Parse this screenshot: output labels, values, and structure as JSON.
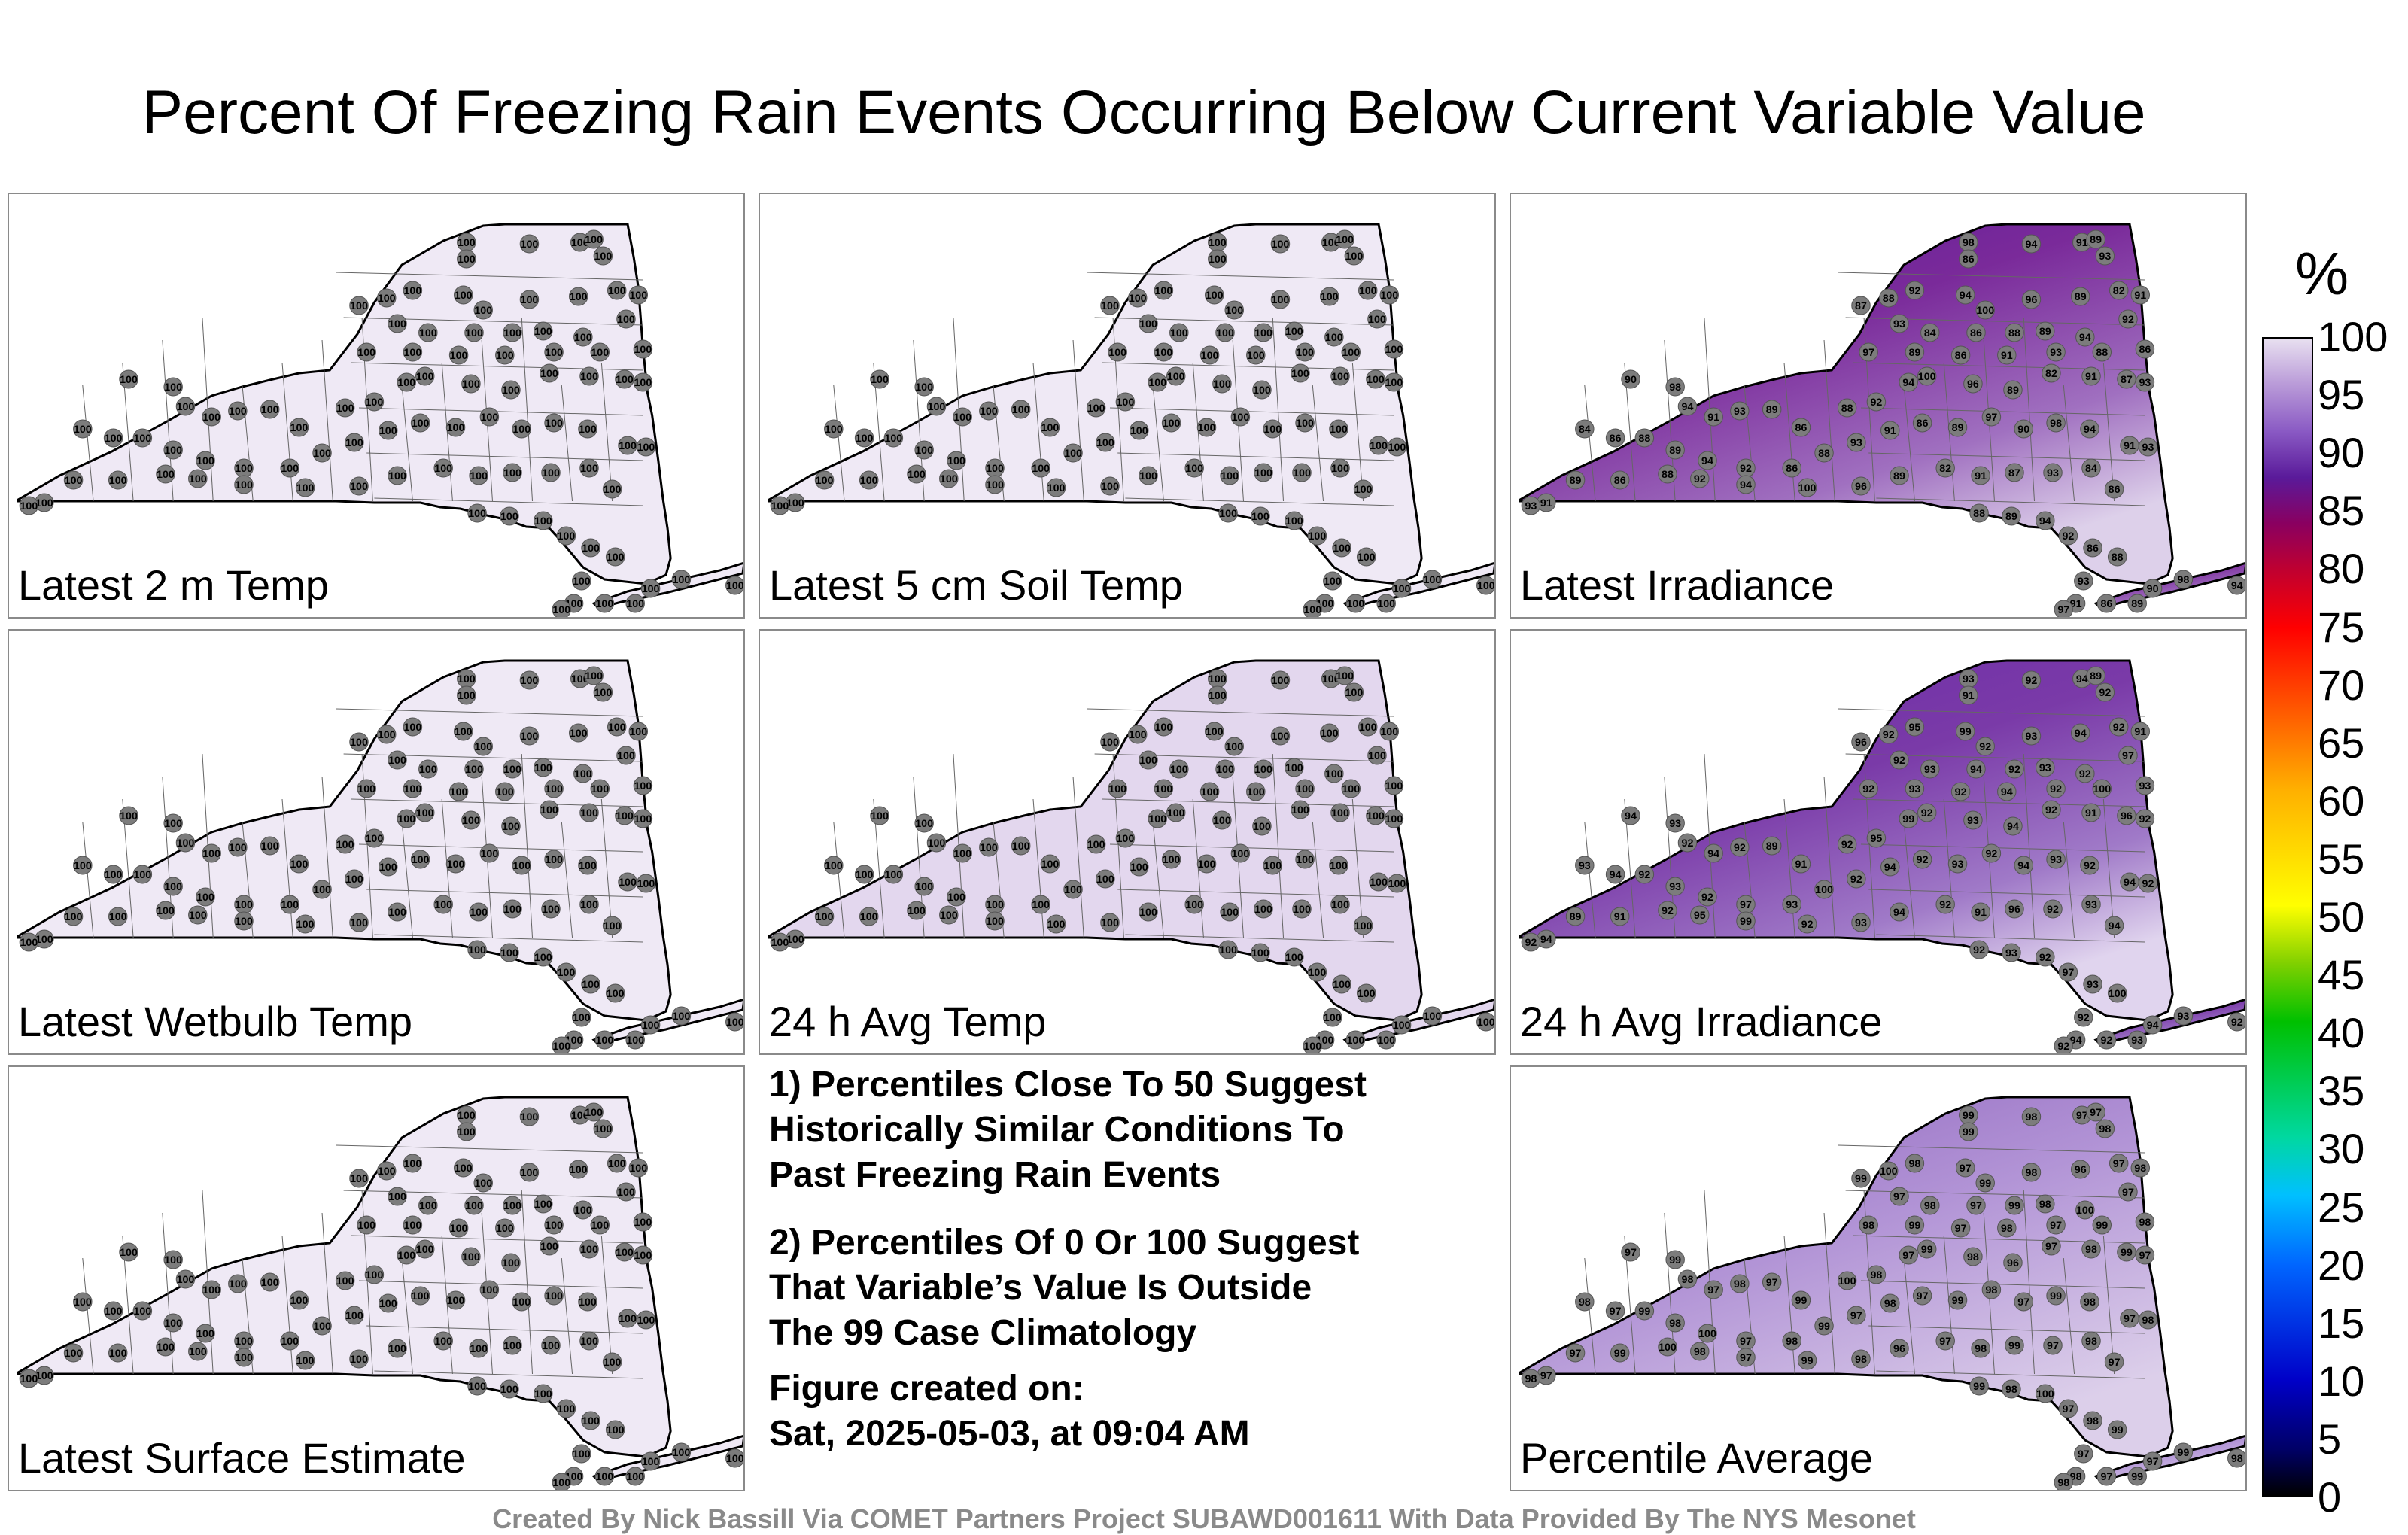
{
  "title": "Percent Of Freezing Rain Events Occurring Below Current Variable Value",
  "panels": [
    {
      "label": "Latest 2 m Temp",
      "value_label": "100",
      "fill": "#efe9f5",
      "style": "uniform"
    },
    {
      "label": "Latest 5 cm Soil Temp",
      "value_label": "100",
      "fill": "#efe9f5",
      "style": "uniform"
    },
    {
      "label": "Latest Irradiance",
      "value_label": "89",
      "fill": "#6a2a9a",
      "style": "irradiance"
    },
    {
      "label": "Latest Wetbulb Temp",
      "value_label": "100",
      "fill": "#efe9f5",
      "style": "uniform"
    },
    {
      "label": "24 h Avg Temp",
      "value_label": "100",
      "fill": "#e3d7ee",
      "style": "uniform"
    },
    {
      "label": "24 h Avg Irradiance",
      "value_label": "92",
      "fill": "#7a3aa8",
      "style": "avgirr"
    },
    {
      "label": "Latest Surface Estimate",
      "value_label": "100",
      "fill": "#efe9f5",
      "style": "uniform"
    },
    {
      "label": "Percentile Average",
      "value_label": "97",
      "fill": "#c7aee0",
      "style": "average"
    }
  ],
  "notes": {
    "line1": "1) Percentiles Close To 50 Suggest\nHistorically Similar Conditions To\nPast Freezing Rain Events",
    "line2": "2) Percentiles Of 0 Or 100 Suggest\nThat Variable’s Value Is Outside\nThe 99 Case Climatology",
    "line3": "Figure created on:\nSat, 2025-05-03, at 09:04 AM"
  },
  "colorbar": {
    "unit": "%",
    "ticks": [
      "100",
      "95",
      "90",
      "85",
      "80",
      "75",
      "70",
      "65",
      "60",
      "55",
      "50",
      "45",
      "40",
      "35",
      "30",
      "25",
      "20",
      "15",
      "10",
      "5",
      "0"
    ]
  },
  "footer": "Created By Nick Bassill Via COMET Partners Project SUBAWD001611 With Data Provided By The NYS Mesonet"
}
